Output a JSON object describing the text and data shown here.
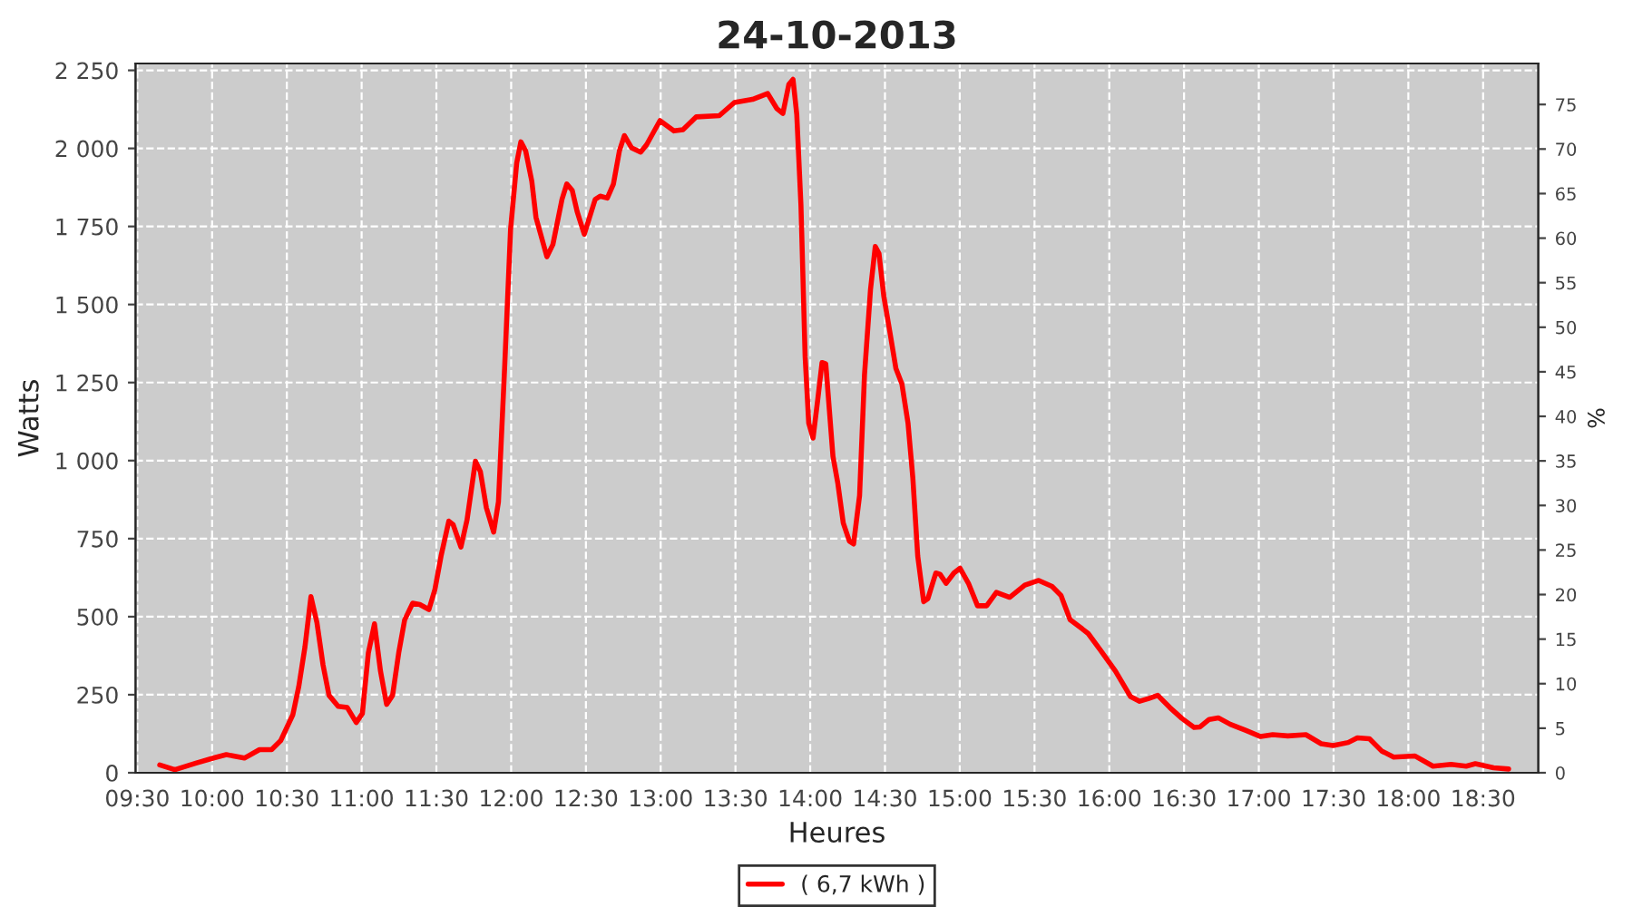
{
  "chart_data": {
    "type": "line",
    "title": "24-10-2013",
    "xlabel": "Heures",
    "ylabel": "Watts",
    "y2label": "%",
    "xlim": [
      9.488,
      18.869
    ],
    "xticks": [
      {
        "value": 9.5,
        "label": "09:30"
      },
      {
        "value": 10,
        "label": "10:00"
      },
      {
        "value": 10.5,
        "label": "10:30"
      },
      {
        "value": 11,
        "label": "11:00"
      },
      {
        "value": 11.5,
        "label": "11:30"
      },
      {
        "value": 12,
        "label": "12:00"
      },
      {
        "value": 12.5,
        "label": "12:30"
      },
      {
        "value": 13,
        "label": "13:00"
      },
      {
        "value": 13.5,
        "label": "13:30"
      },
      {
        "value": 14,
        "label": "14:00"
      },
      {
        "value": 14.5,
        "label": "14:30"
      },
      {
        "value": 15,
        "label": "15:00"
      },
      {
        "value": 15.5,
        "label": "15:30"
      },
      {
        "value": 16,
        "label": "16:00"
      },
      {
        "value": 16.5,
        "label": "16:30"
      },
      {
        "value": 17,
        "label": "17:00"
      },
      {
        "value": 17.5,
        "label": "17:30"
      },
      {
        "value": 18,
        "label": "18:00"
      },
      {
        "value": 18.5,
        "label": "18:30"
      }
    ],
    "ylim": [
      0,
      2272
    ],
    "yticks": [
      0,
      250,
      500,
      750,
      {
        "value": 1000,
        "label": "1 000"
      },
      {
        "value": 1250,
        "label": "1 250"
      },
      {
        "value": 1500,
        "label": "1 500"
      },
      {
        "value": 1750,
        "label": "1 750"
      },
      {
        "value": 2000,
        "label": "2 000"
      },
      {
        "value": 2250,
        "label": "2 250"
      }
    ],
    "y2lim": [
      0,
      79.6
    ],
    "y2ticks": [
      0,
      5,
      10,
      15,
      20,
      25,
      30,
      35,
      40,
      45,
      50,
      55,
      60,
      65,
      70,
      75
    ],
    "grid": true,
    "legend": "bottom",
    "series": [
      {
        "name": "( 6,7 kWh )",
        "color": "#ff0000",
        "x": [
          9.65,
          9.751,
          9.892,
          10.014,
          10.095,
          10.216,
          10.317,
          10.398,
          10.459,
          10.54,
          10.58,
          10.621,
          10.661,
          10.701,
          10.742,
          10.782,
          10.843,
          10.904,
          10.964,
          11.005,
          11.045,
          11.086,
          11.126,
          11.167,
          11.207,
          11.248,
          11.288,
          11.341,
          11.389,
          11.45,
          11.49,
          11.531,
          11.583,
          11.612,
          11.664,
          11.705,
          11.761,
          11.794,
          11.834,
          11.883,
          11.915,
          11.956,
          11.996,
          12.037,
          12.065,
          12.097,
          12.138,
          12.166,
          12.239,
          12.279,
          12.34,
          12.372,
          12.408,
          12.441,
          12.489,
          12.562,
          12.595,
          12.643,
          12.684,
          12.724,
          12.757,
          12.805,
          12.866,
          12.906,
          12.995,
          13.088,
          13.149,
          13.238,
          13.392,
          13.493,
          13.614,
          13.715,
          13.776,
          13.817,
          13.857,
          13.885,
          13.91,
          13.938,
          13.966,
          13.99,
          14.019,
          14.051,
          14.079,
          14.104,
          14.152,
          14.185,
          14.221,
          14.262,
          14.29,
          14.33,
          14.363,
          14.403,
          14.435,
          14.46,
          14.492,
          14.533,
          14.573,
          14.613,
          14.654,
          14.686,
          14.719,
          14.759,
          14.787,
          14.84,
          14.868,
          14.909,
          14.961,
          15.002,
          15.058,
          15.119,
          15.18,
          15.245,
          15.334,
          15.435,
          15.528,
          15.617,
          15.677,
          15.738,
          15.819,
          15.859,
          15.94,
          16.041,
          16.142,
          16.203,
          16.264,
          16.324,
          16.405,
          16.486,
          16.567,
          16.607,
          16.668,
          16.729,
          16.81,
          16.911,
          17.012,
          17.093,
          17.194,
          17.315,
          17.417,
          17.497,
          17.598,
          17.659,
          17.74,
          17.821,
          17.902,
          18.043,
          18.165,
          18.286,
          18.387,
          18.448,
          18.57,
          18.671
        ],
        "values": [
          25,
          10,
          31,
          48,
          58,
          47,
          74,
          74,
          103,
          186,
          277,
          403,
          564,
          481,
          345,
          248,
          213,
          209,
          161,
          190,
          384,
          477,
          326,
          219,
          248,
          384,
          490,
          543,
          539,
          523,
          587,
          694,
          806,
          795,
          723,
          810,
          998,
          965,
          849,
          771,
          868,
          1295,
          1740,
          1953,
          2021,
          1992,
          1895,
          1779,
          1653,
          1692,
          1837,
          1886,
          1866,
          1798,
          1725,
          1837,
          1847,
          1841,
          1886,
          1992,
          2041,
          2002,
          1988,
          2012,
          2089,
          2056,
          2060,
          2101,
          2105,
          2147,
          2157,
          2176,
          2128,
          2112,
          2205,
          2221,
          2109,
          1818,
          1333,
          1120,
          1072,
          1198,
          1314,
          1310,
          1014,
          926,
          800,
          742,
          733,
          888,
          1275,
          1547,
          1686,
          1663,
          1527,
          1411,
          1295,
          1246,
          1120,
          946,
          694,
          548,
          558,
          640,
          636,
          607,
          640,
          655,
          607,
          535,
          535,
          578,
          562,
          601,
          616,
          597,
          568,
          490,
          461,
          446,
          393,
          326,
          244,
          229,
          238,
          248,
          209,
          174,
          145,
          147,
          171,
          176,
          155,
          136,
          116,
          122,
          118,
          122,
          93,
          87,
          97,
          112,
          109,
          70,
          50,
          54,
          21,
          27,
          21,
          29,
          16,
          12
        ]
      }
    ]
  }
}
